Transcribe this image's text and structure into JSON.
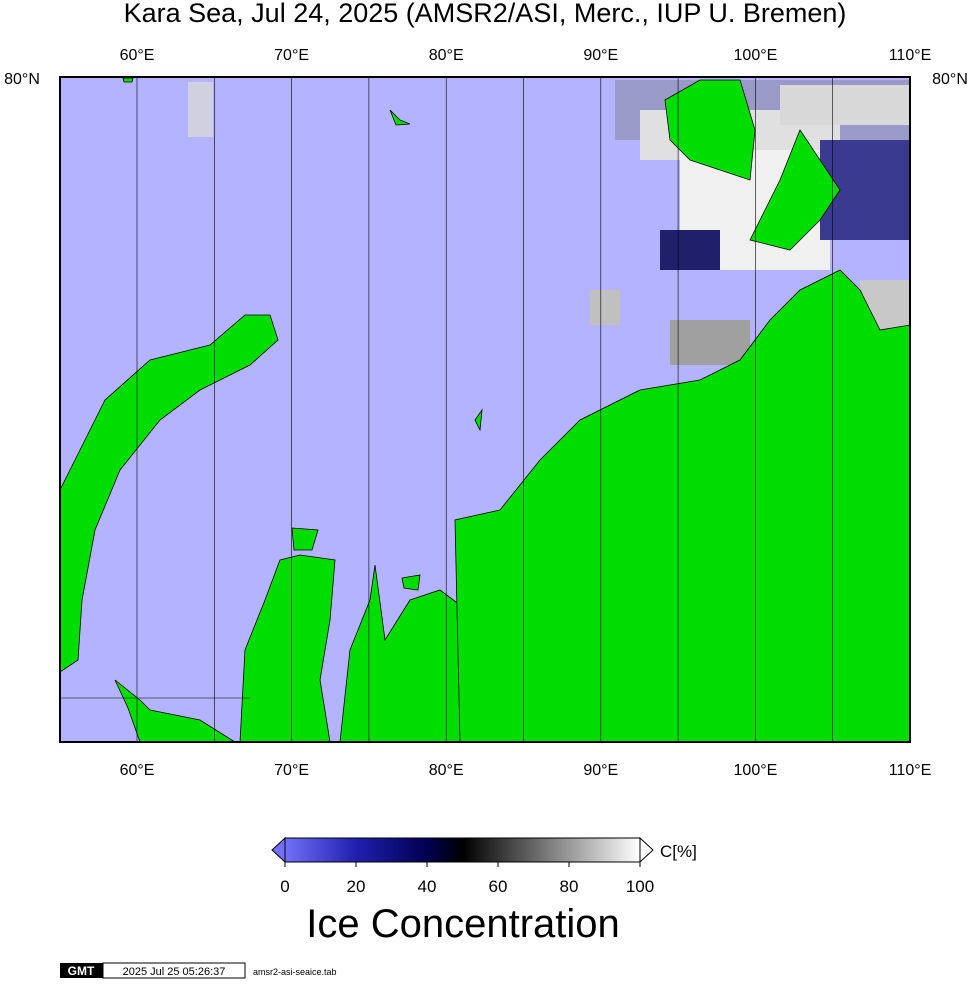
{
  "title": "Kara Sea, Jul 24, 2025 (AMSR2/ASI, Merc., IUP U. Bremen)",
  "map": {
    "lon_labels_top": [
      "60°E",
      "70°E",
      "80°E",
      "90°E",
      "100°E",
      "110°E"
    ],
    "lon_labels_bottom": [
      "60°E",
      "70°E",
      "80°E",
      "90°E",
      "100°E",
      "110°E"
    ],
    "lat_label_left": "80°N",
    "lat_label_right": "80°N"
  },
  "colorbar": {
    "range": [
      0,
      100
    ],
    "ticks": [
      0,
      20,
      40,
      60,
      80,
      100
    ],
    "unit": "C[%]",
    "label": "Ice Concentration"
  },
  "footer": {
    "logo": "GMT",
    "timestamp": "2025 Jul 25 05:26:37",
    "file": "amsr2-asi-seaice.tab"
  }
}
